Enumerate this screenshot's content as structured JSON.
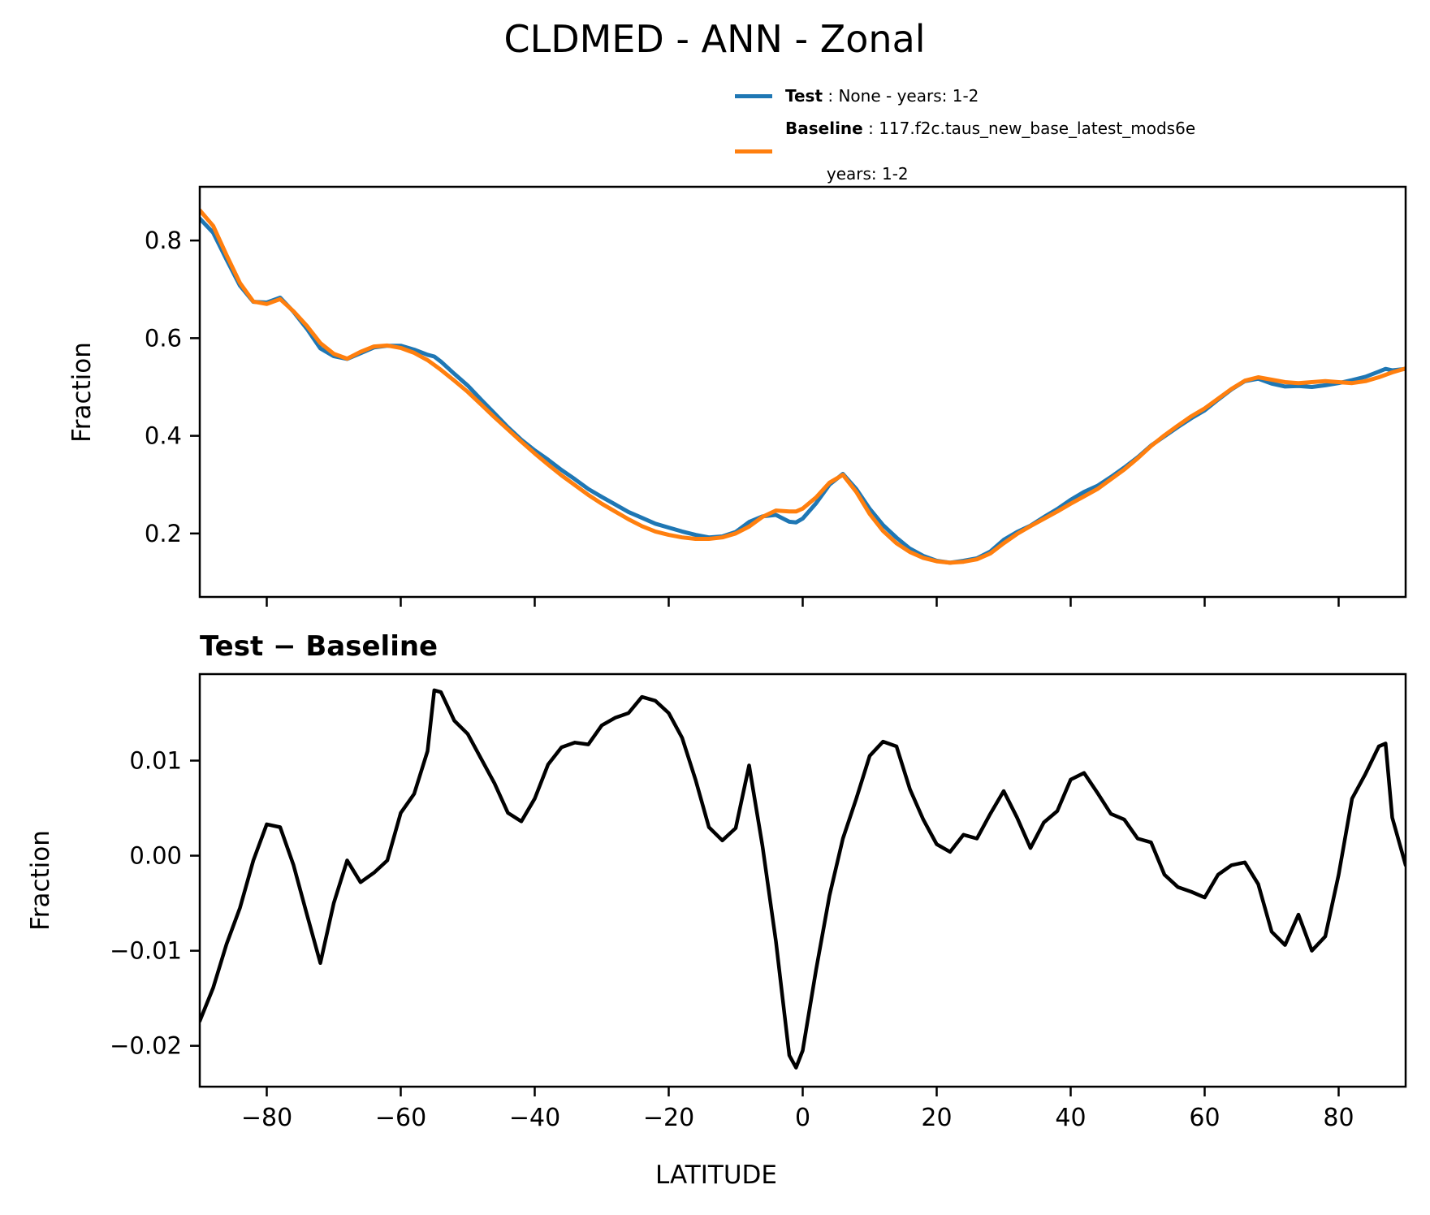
{
  "legend": {
    "entries": [
      {
        "label": "Test",
        "desc": " : None - years: 1-2",
        "desc2": "",
        "color": "#1f77b4"
      },
      {
        "label": "Baseline",
        "desc": " : 117.f2c.taus_new_base_latest_mods6e",
        "desc2": "years: 1-2",
        "color": "#ff7f0e"
      }
    ]
  },
  "colors": {
    "test": "#1f77b4",
    "baseline": "#ff7f0e",
    "difference": "#000000",
    "axes": "#000000"
  },
  "chart_data": [
    {
      "type": "line",
      "title": "CLDMED - ANN - Zonal",
      "ylabel": "Fraction",
      "xlabel": "",
      "xlim": [
        -90,
        90
      ],
      "ylim": [
        0.07,
        0.91
      ],
      "xticks": [
        -80,
        -60,
        -40,
        -20,
        0,
        20,
        40,
        60,
        80
      ],
      "yticks": [
        0.2,
        0.4,
        0.6,
        0.8
      ],
      "ytick_decimals": 1,
      "grid": false,
      "legend_position": "outside upper right",
      "x": [
        -90,
        -88,
        -86,
        -84,
        -82,
        -80,
        -78,
        -76,
        -74,
        -72,
        -70,
        -68,
        -66,
        -64,
        -62,
        -60,
        -58,
        -56,
        -55,
        -54,
        -52,
        -50,
        -48,
        -46,
        -44,
        -42,
        -40,
        -38,
        -36,
        -34,
        -32,
        -30,
        -28,
        -26,
        -24,
        -22,
        -20,
        -18,
        -16,
        -14,
        -12,
        -10,
        -8,
        -6,
        -4,
        -2,
        -1,
        0,
        2,
        4,
        6,
        8,
        10,
        12,
        14,
        16,
        18,
        20,
        22,
        24,
        26,
        28,
        30,
        32,
        34,
        36,
        38,
        40,
        42,
        44,
        46,
        48,
        50,
        52,
        54,
        56,
        58,
        60,
        62,
        64,
        66,
        68,
        70,
        72,
        74,
        76,
        78,
        80,
        82,
        84,
        86,
        87,
        88,
        90
      ],
      "series": [
        {
          "name": "Test",
          "color": "#1f77b4",
          "values": [
            0.845,
            0.816,
            0.761,
            0.7075,
            0.6745,
            0.673,
            0.683,
            0.654,
            0.619,
            0.579,
            0.563,
            0.5575,
            0.569,
            0.581,
            0.5845,
            0.5845,
            0.5765,
            0.566,
            0.5624,
            0.552,
            0.527,
            0.503,
            0.474,
            0.446,
            0.4175,
            0.392,
            0.37,
            0.351,
            0.33,
            0.311,
            0.291,
            0.275,
            0.2595,
            0.244,
            0.232,
            0.22,
            0.212,
            0.204,
            0.197,
            0.192,
            0.194,
            0.203,
            0.2235,
            0.235,
            0.238,
            0.224,
            0.2227,
            0.2305,
            0.262,
            0.3,
            0.322,
            0.291,
            0.2505,
            0.217,
            0.1915,
            0.169,
            0.154,
            0.144,
            0.14,
            0.144,
            0.149,
            0.163,
            0.187,
            0.203,
            0.216,
            0.2335,
            0.25,
            0.269,
            0.285,
            0.2975,
            0.3155,
            0.335,
            0.356,
            0.38,
            0.399,
            0.418,
            0.436,
            0.452,
            0.474,
            0.495,
            0.512,
            0.517,
            0.507,
            0.501,
            0.502,
            0.5,
            0.5035,
            0.508,
            0.514,
            0.521,
            0.5315,
            0.537,
            0.534,
            0.537
          ]
        },
        {
          "name": "Baseline",
          "color": "#ff7f0e",
          "values": [
            0.862,
            0.83,
            0.77,
            0.713,
            0.675,
            0.67,
            0.68,
            0.655,
            0.625,
            0.59,
            0.568,
            0.558,
            0.572,
            0.583,
            0.585,
            0.58,
            0.57,
            0.555,
            0.545,
            0.535,
            0.513,
            0.49,
            0.464,
            0.438,
            0.413,
            0.388,
            0.364,
            0.341,
            0.319,
            0.299,
            0.279,
            0.261,
            0.245,
            0.229,
            0.215,
            0.204,
            0.197,
            0.192,
            0.189,
            0.189,
            0.192,
            0.2,
            0.214,
            0.234,
            0.247,
            0.245,
            0.245,
            0.251,
            0.274,
            0.304,
            0.32,
            0.285,
            0.24,
            0.205,
            0.18,
            0.162,
            0.15,
            0.143,
            0.14,
            0.142,
            0.147,
            0.159,
            0.18,
            0.199,
            0.215,
            0.23,
            0.245,
            0.261,
            0.276,
            0.291,
            0.311,
            0.331,
            0.354,
            0.379,
            0.401,
            0.421,
            0.44,
            0.456,
            0.476,
            0.496,
            0.513,
            0.52,
            0.515,
            0.51,
            0.508,
            0.51,
            0.512,
            0.51,
            0.508,
            0.512,
            0.52,
            0.525,
            0.53,
            0.538
          ]
        }
      ]
    },
    {
      "type": "line",
      "title": "Test − Baseline",
      "ylabel": "Fraction",
      "xlabel": "LATITUDE",
      "xlim": [
        -90,
        90
      ],
      "ylim": [
        -0.0243,
        0.0191
      ],
      "xticks": [
        -80,
        -60,
        -40,
        -20,
        0,
        20,
        40,
        60,
        80
      ],
      "yticks": [
        0.01,
        0.0,
        -0.01,
        -0.02
      ],
      "ytick_decimals": 2,
      "grid": false,
      "x": [
        -90,
        -88,
        -86,
        -84,
        -82,
        -80,
        -78,
        -76,
        -74,
        -72,
        -70,
        -68,
        -66,
        -64,
        -62,
        -60,
        -58,
        -56,
        -55,
        -54,
        -52,
        -50,
        -48,
        -46,
        -44,
        -42,
        -40,
        -38,
        -36,
        -34,
        -32,
        -30,
        -28,
        -26,
        -24,
        -22,
        -20,
        -18,
        -16,
        -14,
        -12,
        -10,
        -8,
        -6,
        -4,
        -2,
        -1,
        0,
        2,
        4,
        6,
        8,
        10,
        12,
        14,
        16,
        18,
        20,
        22,
        24,
        26,
        28,
        30,
        32,
        34,
        36,
        38,
        40,
        42,
        44,
        46,
        48,
        50,
        52,
        54,
        56,
        58,
        60,
        62,
        64,
        66,
        68,
        70,
        72,
        74,
        76,
        78,
        80,
        82,
        84,
        86,
        87,
        88,
        90
      ],
      "series": [
        {
          "name": "Test − Baseline",
          "color": "#000000",
          "values": [
            -0.0174,
            -0.0139,
            -0.0093,
            -0.0055,
            -0.0005,
            0.0033,
            0.003,
            -0.001,
            -0.0062,
            -0.0113,
            -0.005,
            -0.0005,
            -0.0028,
            -0.0018,
            -0.0005,
            0.0045,
            0.0065,
            0.011,
            0.0174,
            0.0172,
            0.0142,
            0.0128,
            0.0102,
            0.0076,
            0.0045,
            0.0036,
            0.006,
            0.0096,
            0.0114,
            0.0119,
            0.0117,
            0.0137,
            0.0145,
            0.015,
            0.0167,
            0.0163,
            0.015,
            0.0124,
            0.008,
            0.003,
            0.0016,
            0.0029,
            0.0095,
            0.001,
            -0.009,
            -0.021,
            -0.0223,
            -0.0205,
            -0.012,
            -0.0042,
            0.0018,
            0.006,
            0.0105,
            0.012,
            0.0115,
            0.007,
            0.0038,
            0.0012,
            0.0004,
            0.0022,
            0.0018,
            0.0044,
            0.0068,
            0.004,
            0.0008,
            0.0035,
            0.0047,
            0.008,
            0.0087,
            0.0066,
            0.0044,
            0.0038,
            0.0018,
            0.0014,
            -0.002,
            -0.0033,
            -0.0038,
            -0.0044,
            -0.002,
            -0.001,
            -0.0007,
            -0.003,
            -0.008,
            -0.0094,
            -0.0062,
            -0.01,
            -0.0085,
            -0.002,
            0.006,
            0.0086,
            0.0115,
            0.0118,
            0.004,
            -0.001
          ]
        }
      ]
    }
  ]
}
